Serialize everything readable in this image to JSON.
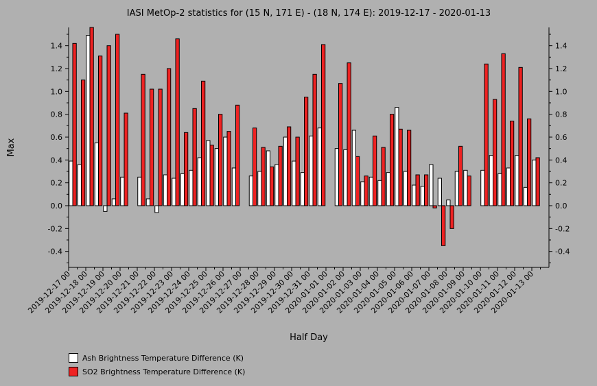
{
  "chart_data": {
    "type": "bar",
    "title": "IASI MetOp-2 statistics for (15 N, 171 E) - (18 N, 174 E): 2019-12-17 - 2020-01-13",
    "xlabel": "Half Day",
    "ylabel": "Max",
    "ylim": [
      -0.54,
      1.56
    ],
    "yticks": [
      -0.4,
      -0.2,
      0.0,
      0.2,
      0.4,
      0.6,
      0.8,
      1.0,
      1.2,
      1.4
    ],
    "ytick_labels": [
      "-0.4",
      "-0.2",
      "0.0",
      "0.2",
      "0.4",
      "0.6",
      "0.8",
      "1.0",
      "1.2",
      "1.4"
    ],
    "categories": [
      "2019-12-17 00",
      "2019-12-17 12",
      "2019-12-18 00",
      "2019-12-18 12",
      "2019-12-19 00",
      "2019-12-19 12",
      "2019-12-20 00",
      "2019-12-20 12",
      "2019-12-21 00",
      "2019-12-21 12",
      "2019-12-22 00",
      "2019-12-22 12",
      "2019-12-23 00",
      "2019-12-23 12",
      "2019-12-24 00",
      "2019-12-24 12",
      "2019-12-25 00",
      "2019-12-25 12",
      "2019-12-26 00",
      "2019-12-26 12",
      "2019-12-27 00",
      "2019-12-27 12",
      "2019-12-28 00",
      "2019-12-28 12",
      "2019-12-29 00",
      "2019-12-29 12",
      "2019-12-30 00",
      "2019-12-30 12",
      "2019-12-31 00",
      "2019-12-31 12",
      "2020-01-01 00",
      "2020-01-01 12",
      "2020-01-02 00",
      "2020-01-02 12",
      "2020-01-03 00",
      "2020-01-03 12",
      "2020-01-04 00",
      "2020-01-04 12",
      "2020-01-05 00",
      "2020-01-05 12",
      "2020-01-06 00",
      "2020-01-06 12",
      "2020-01-07 00",
      "2020-01-07 12",
      "2020-01-08 00",
      "2020-01-08 12",
      "2020-01-09 00",
      "2020-01-09 12",
      "2020-01-10 00",
      "2020-01-10 12",
      "2020-01-11 00",
      "2020-01-11 12",
      "2020-01-12 00",
      "2020-01-12 12",
      "2020-01-13 00",
      "2020-01-13 12"
    ],
    "xtick_labels": [
      "2019-12-17 00",
      "2019-12-18 00",
      "2019-12-19 00",
      "2019-12-20 00",
      "2019-12-21 00",
      "2019-12-22 00",
      "2019-12-23 00",
      "2019-12-24 00",
      "2019-12-25 00",
      "2019-12-26 00",
      "2019-12-27 00",
      "2019-12-28 00",
      "2019-12-29 00",
      "2019-12-30 00",
      "2019-12-31 00",
      "2020-01-01 00",
      "2020-01-02 00",
      "2020-01-03 00",
      "2020-01-04 00",
      "2020-01-05 00",
      "2020-01-06 00",
      "2020-01-07 00",
      "2020-01-08 00",
      "2020-01-09 00",
      "2020-01-10 00",
      "2020-01-11 00",
      "2020-01-12 00",
      "2020-01-13 00"
    ],
    "series": [
      {
        "name": "Ash Brightness Temperature Difference (K)",
        "color": "#ffffff",
        "values": [
          0.39,
          0.36,
          1.49,
          0.55,
          -0.05,
          0.06,
          0.25,
          null,
          0.25,
          0.06,
          -0.06,
          0.27,
          0.24,
          0.28,
          0.31,
          0.42,
          0.57,
          0.5,
          0.6,
          0.33,
          null,
          0.26,
          0.3,
          0.48,
          0.36,
          0.6,
          0.39,
          0.29,
          0.61,
          0.68,
          null,
          0.5,
          0.49,
          0.66,
          0.21,
          0.25,
          0.22,
          0.29,
          0.86,
          0.3,
          0.18,
          0.17,
          0.36,
          0.24,
          0.05,
          0.3,
          0.31,
          null,
          0.31,
          0.44,
          0.28,
          0.33,
          0.44,
          0.16,
          0.4,
          null
        ]
      },
      {
        "name": "SO2 Brightness Temperature Difference (K)",
        "color": "#ee2222",
        "values": [
          1.42,
          1.1,
          1.56,
          1.31,
          1.4,
          1.5,
          0.81,
          null,
          1.15,
          1.02,
          1.02,
          1.2,
          1.46,
          0.64,
          0.85,
          1.09,
          0.53,
          0.8,
          0.65,
          0.88,
          null,
          0.68,
          0.51,
          0.34,
          0.52,
          0.69,
          0.6,
          0.95,
          1.15,
          1.41,
          null,
          1.07,
          1.25,
          0.43,
          0.26,
          0.61,
          0.51,
          0.8,
          0.67,
          0.66,
          0.27,
          0.27,
          -0.02,
          -0.35,
          -0.2,
          0.52,
          0.26,
          null,
          1.24,
          0.93,
          1.33,
          0.74,
          1.21,
          0.76,
          0.42,
          null
        ]
      }
    ],
    "grid": false,
    "legend_position": "bottom-left"
  }
}
